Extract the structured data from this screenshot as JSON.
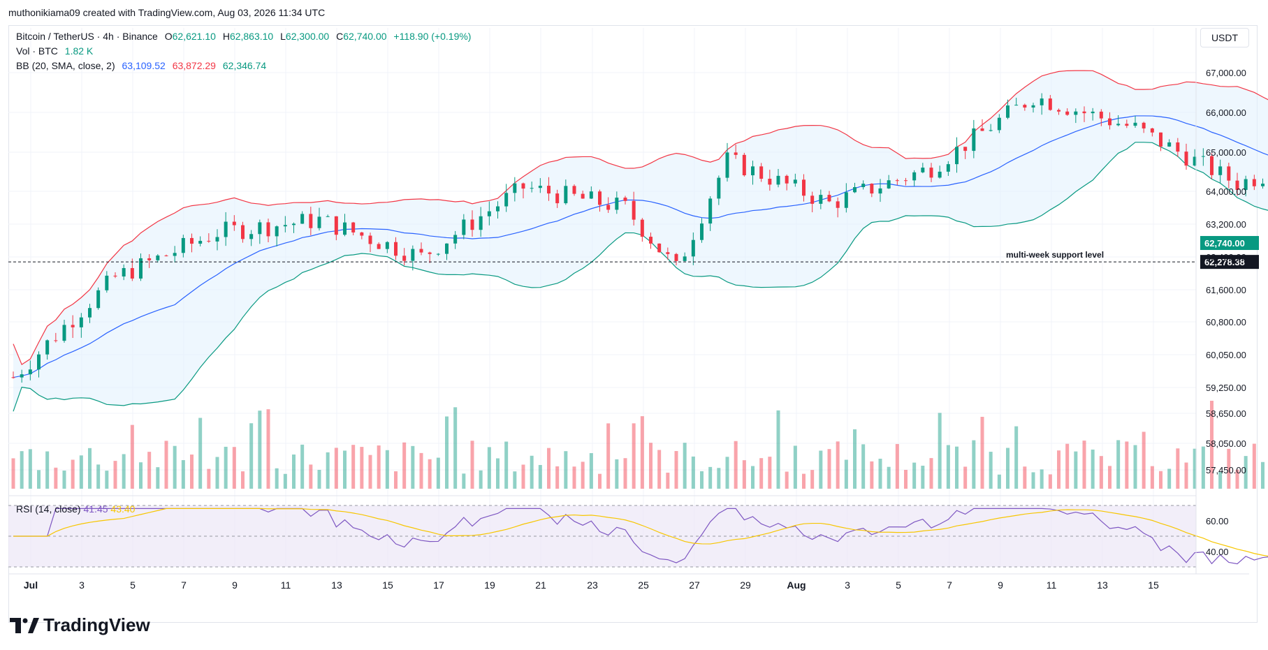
{
  "credit": "muthonikiama09 created with TradingView.com, Aug 03, 2026 11:34 UTC",
  "logo_text": "TradingView",
  "currency": "USDT",
  "legend": {
    "symbol": "Bitcoin / TetherUS · 4h · Binance",
    "o_label": "O",
    "o": "62,621.10",
    "h_label": "H",
    "h": "62,863.10",
    "l_label": "L",
    "l": "62,300.00",
    "c_label": "C",
    "c": "62,740.00",
    "change": "+118.90 (+0.19%)",
    "vol_label": "Vol · BTC",
    "vol": "1.82 K",
    "bb_label": "BB (20, SMA, close, 2)",
    "bb_mid": "63,109.52",
    "bb_up": "63,872.29",
    "bb_low": "62,346.74"
  },
  "rsi_legend": {
    "label": "RSI (14, close)",
    "rsi": "41.45",
    "ma": "43.40"
  },
  "colors": {
    "up": "#089981",
    "down": "#f23645",
    "bb_mid": "#2962ff",
    "bb_up": "#f23645",
    "bb_low": "#089981",
    "bb_fill": "#e3f2fd",
    "rsi": "#7e57c2",
    "rsi_ma": "#f7c600",
    "rsi_bg": "#ede7f6"
  },
  "chart_data": {
    "type": "candlestick",
    "title": "Bitcoin / TetherUS · 4h · Binance",
    "price_axis_ticks": [
      "67,000.00",
      "66,000.00",
      "65,000.00",
      "64,000.00",
      "63,200.00",
      "62,400.00",
      "61,600.00",
      "60,800.00",
      "60,050.00",
      "59,250.00",
      "58,650.00",
      "58,050.00",
      "57,450.00"
    ],
    "price_axis_values": [
      67000,
      66000,
      65000,
      64000,
      63200,
      62400,
      61600,
      60800,
      60050,
      59250,
      58650,
      58050,
      57450
    ],
    "rsi_axis_ticks": [
      "60.00",
      "40.00"
    ],
    "rsi_axis_values": [
      60,
      40
    ],
    "time_axis_labels": [
      "Jul",
      "3",
      "5",
      "7",
      "9",
      "11",
      "13",
      "15",
      "17",
      "19",
      "21",
      "23",
      "25",
      "27",
      "29",
      "Aug",
      "3",
      "5",
      "7",
      "9",
      "11",
      "13",
      "15"
    ],
    "current_price_label": "62,740.00",
    "support_label_value": "62,278.38",
    "support_level": 62278.38,
    "annotation": "multi-week support level",
    "key_points": [
      {
        "date": "Jul 1",
        "close": 59500
      },
      {
        "date": "Jul 3",
        "close": 61900
      },
      {
        "date": "Jul 5",
        "close": 63000
      },
      {
        "date": "Jul 7",
        "close": 63300
      },
      {
        "date": "Jul 9",
        "close": 62400
      },
      {
        "date": "Jul 11",
        "close": 64100
      },
      {
        "date": "Jul 13",
        "close": 63600
      },
      {
        "date": "Jul 14",
        "close": 62100
      },
      {
        "date": "Jul 15",
        "close": 64800
      },
      {
        "date": "Jul 17",
        "close": 63700
      },
      {
        "date": "Jul 19",
        "close": 64600
      },
      {
        "date": "Jul 21",
        "close": 66400
      },
      {
        "date": "Jul 23",
        "close": 65600
      },
      {
        "date": "Jul 25",
        "close": 64200
      },
      {
        "date": "Jul 27",
        "close": 65000
      },
      {
        "date": "Jul 29",
        "close": 63700
      },
      {
        "date": "Jul 31",
        "close": 64300
      },
      {
        "date": "Aug 1",
        "close": 62800
      },
      {
        "date": "Aug 3",
        "close": 62740
      }
    ],
    "rsi_range": [
      30,
      70
    ],
    "rsi_levels": [
      70,
      50,
      30
    ]
  }
}
